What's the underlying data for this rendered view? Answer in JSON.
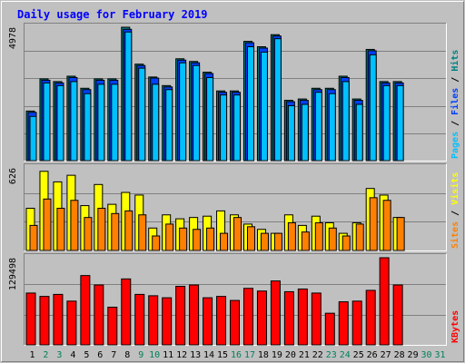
{
  "chart_data": {
    "type": "bar",
    "title": "Daily usage for February 2019",
    "x": [
      "1",
      "2",
      "3",
      "4",
      "5",
      "6",
      "7",
      "8",
      "9",
      "10",
      "11",
      "12",
      "13",
      "14",
      "15",
      "16",
      "17",
      "18",
      "19",
      "20",
      "21",
      "22",
      "23",
      "24",
      "25",
      "26",
      "27",
      "28",
      "29",
      "30",
      "31"
    ],
    "weekend_days": [
      "2",
      "3",
      "9",
      "10",
      "16",
      "17",
      "23",
      "24",
      "30",
      "31"
    ],
    "panels": [
      {
        "label_parts": [
          "Pages",
          "Files",
          "Hits"
        ],
        "label_colors": [
          "#00c0ff",
          "#0040ff",
          "#008080"
        ],
        "ymax_label": "4978",
        "ylim": [
          0,
          4978
        ],
        "series": [
          {
            "name": "Hits",
            "color": "#008080",
            "values": [
              1850,
              3050,
              2950,
              3150,
              2700,
              3050,
              3050,
              4978,
              3600,
              3120,
              2800,
              3800,
              3700,
              3300,
              2600,
              2600,
              4450,
              4250,
              4700,
              2250,
              2300,
              2700,
              2700,
              3150,
              2300,
              4150,
              2950,
              2950,
              0,
              0,
              0
            ]
          },
          {
            "name": "Files",
            "color": "#0040ff",
            "values": [
              1800,
              3000,
              2900,
              3100,
              2650,
              3000,
              3000,
              4900,
              3550,
              3080,
              2750,
              3750,
              3650,
              3250,
              2550,
              2550,
              4400,
              4200,
              4650,
              2200,
              2250,
              2650,
              2650,
              3100,
              2250,
              4100,
              2900,
              2900,
              0,
              0,
              0
            ]
          },
          {
            "name": "Pages",
            "color": "#00c0ff",
            "values": [
              1650,
              2900,
              2800,
              2950,
              2500,
              2850,
              2850,
              4800,
              3450,
              2850,
              2650,
              3650,
              3550,
              3100,
              2450,
              2450,
              4250,
              4050,
              4550,
              2050,
              2100,
              2550,
              2500,
              2950,
              2100,
              3950,
              2800,
              2800,
              0,
              0,
              0
            ]
          }
        ]
      },
      {
        "label_parts": [
          "Sites",
          "Visits"
        ],
        "label_colors": [
          "#ff8000",
          "#ffff00"
        ],
        "ymax_label": "626",
        "ylim": [
          0,
          626
        ],
        "series": [
          {
            "name": "Visits",
            "color": "#ffff00",
            "values": [
              320,
              600,
              520,
              570,
              340,
              500,
              350,
              440,
              420,
              170,
              270,
              240,
              250,
              260,
              300,
              270,
              200,
              160,
              130,
              270,
              190,
              260,
              210,
              130,
              210,
              470,
              420,
              250,
              0,
              0,
              0
            ]
          },
          {
            "name": "Sites",
            "color": "#ff8000",
            "values": [
              190,
              390,
              320,
              380,
              250,
              320,
              280,
              300,
              270,
              110,
              200,
              170,
              160,
              170,
              130,
              250,
              180,
              130,
              130,
              210,
              140,
              210,
              170,
              110,
              200,
              400,
              380,
              250,
              0,
              0,
              0
            ]
          }
        ]
      },
      {
        "label_parts": [
          "KBytes"
        ],
        "label_colors": [
          "#ff0000"
        ],
        "ymax_label": "129498",
        "ylim": [
          0,
          129498
        ],
        "series": [
          {
            "name": "KBytes",
            "color": "#ff0000",
            "values": [
              77000,
              72000,
              75000,
              65000,
              103000,
              89000,
              56000,
              98000,
              75000,
              73000,
              70000,
              87000,
              89000,
              70000,
              72000,
              66000,
              84000,
              80000,
              95000,
              79000,
              83000,
              77000,
              47000,
              64000,
              65000,
              81000,
              129498,
              89000,
              0,
              0,
              0
            ]
          }
        ]
      }
    ]
  }
}
